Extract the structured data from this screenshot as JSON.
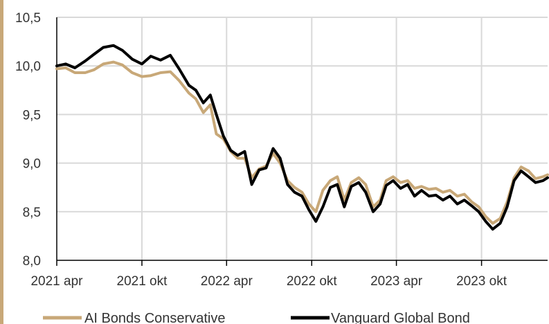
{
  "colors": {
    "series_conservative": "#c8a878",
    "series_vanguard": "#000000",
    "grid": "#d9d9d9",
    "axis": "#000000",
    "left_accent_bar": "#c8a878"
  },
  "chart_data": {
    "type": "line",
    "title": "",
    "xlabel": "",
    "ylabel": "",
    "ylim": [
      8.0,
      10.5
    ],
    "y_ticks": [
      "8,0",
      "8,5",
      "9,0",
      "9,5",
      "10,0",
      "10,5"
    ],
    "y_tick_values": [
      8.0,
      8.5,
      9.0,
      9.5,
      10.0,
      10.5
    ],
    "x_ticks": [
      "2021 apr",
      "2021 okt",
      "2022 apr",
      "2022 okt",
      "2023 apr",
      "2023 okt"
    ],
    "x_tick_dates": [
      "2021-04-01",
      "2021-10-01",
      "2022-04-01",
      "2022-10-01",
      "2023-04-01",
      "2023-10-01"
    ],
    "x_range": [
      "2021-04-01",
      "2024-02-20"
    ],
    "grid": true,
    "legend_position": "bottom",
    "series": [
      {
        "name": "AI Bonds Conservative",
        "x": [
          "2021-04-01",
          "2021-04-20",
          "2021-05-10",
          "2021-06-01",
          "2021-06-20",
          "2021-07-10",
          "2021-08-01",
          "2021-08-20",
          "2021-09-10",
          "2021-10-01",
          "2021-10-20",
          "2021-11-10",
          "2021-12-01",
          "2021-12-20",
          "2022-01-10",
          "2022-01-25",
          "2022-02-10",
          "2022-02-25",
          "2022-03-10",
          "2022-03-25",
          "2022-04-10",
          "2022-04-25",
          "2022-05-10",
          "2022-05-25",
          "2022-06-10",
          "2022-06-25",
          "2022-07-10",
          "2022-07-25",
          "2022-08-10",
          "2022-08-25",
          "2022-09-10",
          "2022-09-25",
          "2022-10-10",
          "2022-10-25",
          "2022-11-10",
          "2022-11-25",
          "2022-12-10",
          "2022-12-25",
          "2023-01-10",
          "2023-01-25",
          "2023-02-10",
          "2023-02-25",
          "2023-03-10",
          "2023-03-25",
          "2023-04-10",
          "2023-04-25",
          "2023-05-10",
          "2023-05-25",
          "2023-06-10",
          "2023-06-25",
          "2023-07-10",
          "2023-07-25",
          "2023-08-10",
          "2023-08-25",
          "2023-09-10",
          "2023-09-25",
          "2023-10-10",
          "2023-10-25",
          "2023-11-10",
          "2023-11-25",
          "2023-12-10",
          "2023-12-25",
          "2024-01-10",
          "2024-01-25",
          "2024-02-10",
          "2024-02-20"
        ],
        "values": [
          9.97,
          9.98,
          9.93,
          9.93,
          9.96,
          10.02,
          10.04,
          10.01,
          9.93,
          9.89,
          9.9,
          9.93,
          9.94,
          9.85,
          9.72,
          9.66,
          9.52,
          9.6,
          9.3,
          9.25,
          9.12,
          9.05,
          9.05,
          8.85,
          8.94,
          8.97,
          9.1,
          9.0,
          8.82,
          8.75,
          8.7,
          8.58,
          8.5,
          8.72,
          8.82,
          8.86,
          8.62,
          8.8,
          8.85,
          8.78,
          8.55,
          8.62,
          8.82,
          8.86,
          8.8,
          8.82,
          8.74,
          8.76,
          8.73,
          8.74,
          8.7,
          8.72,
          8.66,
          8.68,
          8.6,
          8.55,
          8.45,
          8.38,
          8.43,
          8.6,
          8.85,
          8.96,
          8.92,
          8.84,
          8.86,
          8.88
        ]
      },
      {
        "name": "Vanguard Global Bond",
        "x": [
          "2021-04-01",
          "2021-04-20",
          "2021-05-10",
          "2021-06-01",
          "2021-06-20",
          "2021-07-10",
          "2021-08-01",
          "2021-08-20",
          "2021-09-10",
          "2021-10-01",
          "2021-10-20",
          "2021-11-10",
          "2021-12-01",
          "2021-12-20",
          "2022-01-10",
          "2022-01-25",
          "2022-02-10",
          "2022-02-25",
          "2022-03-10",
          "2022-03-25",
          "2022-04-10",
          "2022-04-25",
          "2022-05-10",
          "2022-05-25",
          "2022-06-10",
          "2022-06-25",
          "2022-07-10",
          "2022-07-25",
          "2022-08-10",
          "2022-08-25",
          "2022-09-10",
          "2022-09-25",
          "2022-10-10",
          "2022-10-25",
          "2022-11-10",
          "2022-11-25",
          "2022-12-10",
          "2022-12-25",
          "2023-01-10",
          "2023-01-25",
          "2023-02-10",
          "2023-02-25",
          "2023-03-10",
          "2023-03-25",
          "2023-04-10",
          "2023-04-25",
          "2023-05-10",
          "2023-05-25",
          "2023-06-10",
          "2023-06-25",
          "2023-07-10",
          "2023-07-25",
          "2023-08-10",
          "2023-08-25",
          "2023-09-10",
          "2023-09-25",
          "2023-10-10",
          "2023-10-25",
          "2023-11-10",
          "2023-11-25",
          "2023-12-10",
          "2023-12-25",
          "2024-01-10",
          "2024-01-25",
          "2024-02-10",
          "2024-02-20"
        ],
        "values": [
          10.0,
          10.02,
          9.98,
          10.05,
          10.12,
          10.19,
          10.21,
          10.16,
          10.07,
          10.02,
          10.1,
          10.06,
          10.11,
          9.97,
          9.8,
          9.75,
          9.62,
          9.7,
          9.5,
          9.28,
          9.13,
          9.08,
          9.12,
          8.78,
          8.93,
          8.95,
          9.15,
          9.05,
          8.78,
          8.7,
          8.66,
          8.52,
          8.4,
          8.55,
          8.75,
          8.78,
          8.55,
          8.76,
          8.8,
          8.7,
          8.5,
          8.58,
          8.77,
          8.82,
          8.74,
          8.78,
          8.66,
          8.72,
          8.66,
          8.67,
          8.62,
          8.66,
          8.58,
          8.62,
          8.56,
          8.5,
          8.4,
          8.32,
          8.38,
          8.55,
          8.82,
          8.92,
          8.86,
          8.8,
          8.82,
          8.85
        ]
      }
    ]
  }
}
